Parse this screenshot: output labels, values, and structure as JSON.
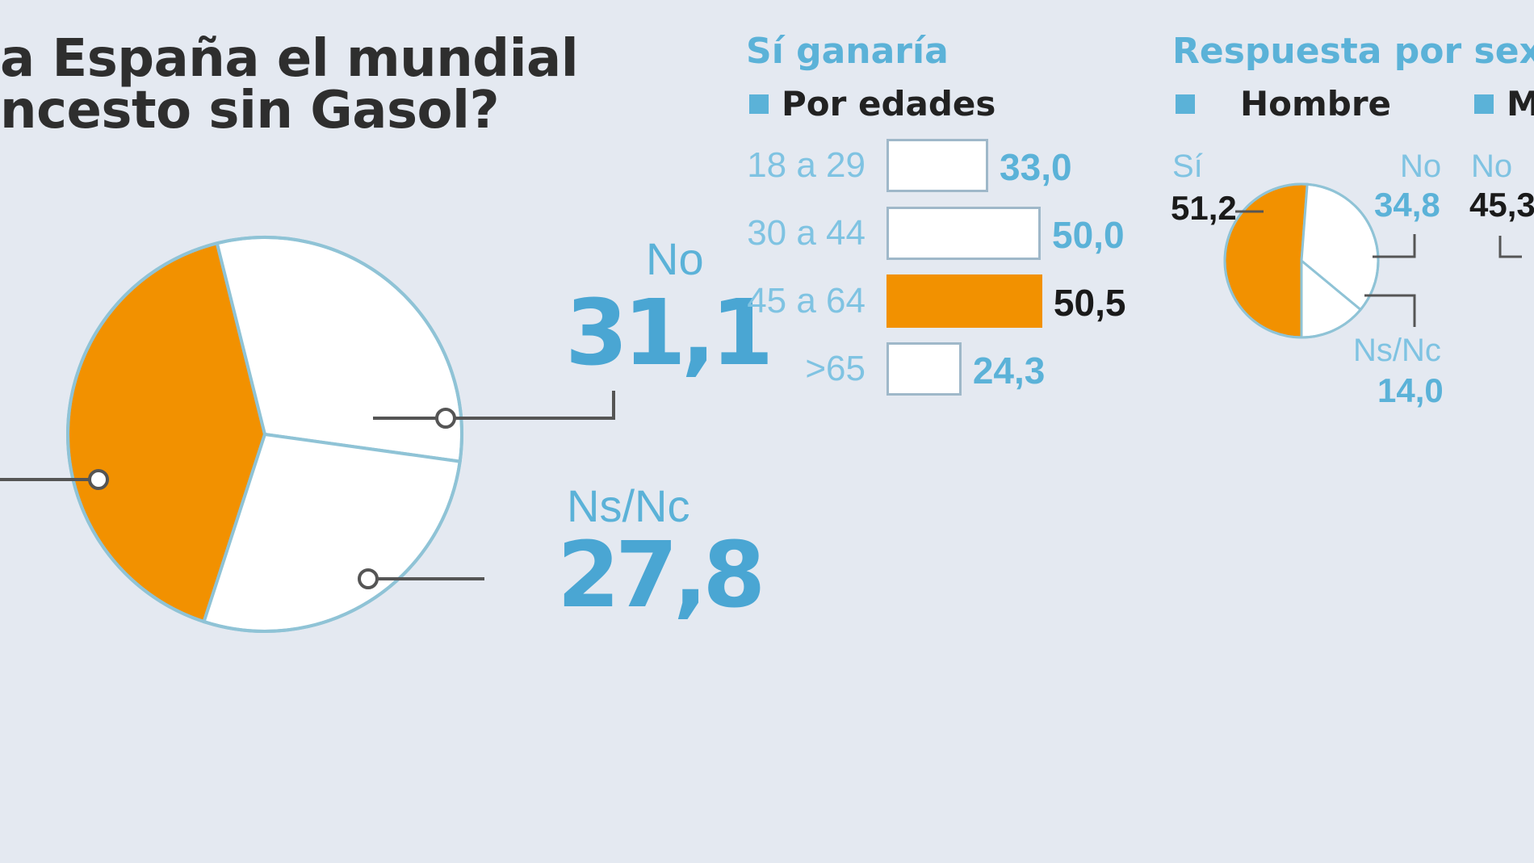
{
  "title": {
    "line1": "a España el mundial",
    "line2": "ncesto sin Gasol?"
  },
  "colors": {
    "si": "#f29100",
    "no": "#ffffff",
    "nsnc": "#ffffff",
    "accent": "#5bb2d8",
    "background": "#e4e9f1"
  },
  "main": {
    "no_label": "No",
    "no_value": "31,1",
    "nsnc_label": "Ns/Nc",
    "nsnc_value": "27,8"
  },
  "age_section": {
    "title": "Sí ganaría",
    "legend": "Por edades",
    "rows": [
      {
        "label": "18 a 29",
        "display": "33,0"
      },
      {
        "label": "30 a 44",
        "display": "50,0"
      },
      {
        "label": "45 a 64",
        "display": "50,5"
      },
      {
        "label": ">65",
        "display": "24,3"
      }
    ]
  },
  "sex_section": {
    "title": "Respuesta por sexo",
    "hombre": {
      "legend": "Hombre",
      "si_label": "Sí",
      "si_value": "51,2",
      "no_label": "No",
      "no_value": "34,8",
      "nsnc_label": "Ns/Nc",
      "nsnc_value": "14,0"
    },
    "mujer": {
      "legend": "M",
      "no_label": "No",
      "no_value": "45,3"
    }
  },
  "chart_data": [
    {
      "type": "pie",
      "title": "",
      "categories": [
        "Sí",
        "No",
        "Ns/Nc"
      ],
      "values": [
        41.1,
        31.1,
        27.8
      ],
      "colors": [
        "#f29100",
        "#ffffff",
        "#ffffff"
      ]
    },
    {
      "type": "bar",
      "title": "Sí ganaría",
      "subtitle": "Por edades",
      "categories": [
        "18 a 29",
        "30 a 44",
        "45 a 64",
        ">65"
      ],
      "values": [
        33.0,
        50.0,
        50.5,
        24.3
      ],
      "highlight_index": 2,
      "orientation": "horizontal"
    },
    {
      "type": "pie",
      "title": "Respuesta por sexo",
      "subtitle": "Hombre",
      "categories": [
        "Sí",
        "No",
        "Ns/Nc"
      ],
      "values": [
        51.2,
        34.8,
        14.0
      ],
      "colors": [
        "#f29100",
        "#ffffff",
        "#ffffff"
      ]
    }
  ]
}
